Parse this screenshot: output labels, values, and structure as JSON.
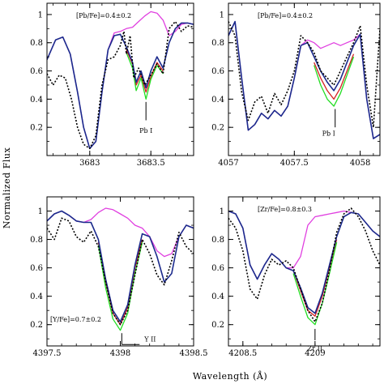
{
  "figure": {
    "xlabel": "Wavelength (Å)",
    "ylabel": "Normalized Flux"
  },
  "colors": {
    "observed": "#000000",
    "blue": "#1b2a8c",
    "magenta": "#e040e0",
    "red": "#d42020",
    "green": "#22dd22"
  },
  "chart_data": [
    {
      "type": "line",
      "panel": "top-left",
      "annotation": "[Pb/Fe]=0.4±0.2",
      "line_label": "Pb I",
      "line_center": 3683.46,
      "xlim": [
        3682.65,
        3683.85
      ],
      "ylim": [
        0,
        1.08
      ],
      "xticks": [
        3683,
        3683.5
      ],
      "xtick_labels": [
        "3683",
        "3683.5"
      ],
      "yticks": [
        0.2,
        0.4,
        0.6,
        0.8,
        1
      ],
      "ytick_labels": [
        "0.2",
        "0.4",
        "0.6",
        "0.8",
        "1"
      ],
      "series": [
        {
          "key": "magenta",
          "x": [
            3682.65,
            3682.72,
            3682.78,
            3682.84,
            3682.9,
            3682.95,
            3683.0,
            3683.05,
            3683.1,
            3683.15,
            3683.2,
            3683.25,
            3683.3,
            3683.35,
            3683.4,
            3683.45,
            3683.5,
            3683.55,
            3683.6,
            3683.65,
            3683.7,
            3683.75,
            3683.8,
            3683.85
          ],
          "y": [
            0.68,
            0.82,
            0.84,
            0.72,
            0.45,
            0.2,
            0.05,
            0.1,
            0.45,
            0.75,
            0.87,
            0.88,
            0.9,
            0.91,
            0.95,
            0.99,
            1.02,
            1.01,
            0.96,
            0.85,
            0.88,
            0.93,
            0.94,
            0.93
          ]
        },
        {
          "key": "red",
          "x": [
            3683.3,
            3683.35,
            3683.38,
            3683.42,
            3683.46,
            3683.5,
            3683.55,
            3683.6
          ],
          "y": [
            0.75,
            0.65,
            0.5,
            0.57,
            0.45,
            0.56,
            0.66,
            0.6
          ]
        },
        {
          "key": "green",
          "x": [
            3683.3,
            3683.35,
            3683.38,
            3683.42,
            3683.46,
            3683.5,
            3683.55,
            3683.6
          ],
          "y": [
            0.73,
            0.62,
            0.46,
            0.55,
            0.4,
            0.54,
            0.64,
            0.58
          ]
        },
        {
          "key": "blue",
          "x": [
            3682.65,
            3682.72,
            3682.78,
            3682.84,
            3682.9,
            3682.95,
            3683.0,
            3683.05,
            3683.1,
            3683.15,
            3683.2,
            3683.25,
            3683.3,
            3683.35,
            3683.38,
            3683.42,
            3683.46,
            3683.5,
            3683.55,
            3683.6,
            3683.65,
            3683.7,
            3683.75,
            3683.8,
            3683.85
          ],
          "y": [
            0.68,
            0.82,
            0.84,
            0.72,
            0.45,
            0.2,
            0.05,
            0.1,
            0.45,
            0.75,
            0.85,
            0.86,
            0.77,
            0.66,
            0.52,
            0.6,
            0.48,
            0.6,
            0.7,
            0.62,
            0.8,
            0.9,
            0.94,
            0.94,
            0.93
          ]
        },
        {
          "key": "observed",
          "dashed": true,
          "x": [
            3682.65,
            3682.7,
            3682.75,
            3682.8,
            3682.85,
            3682.9,
            3682.95,
            3683.0,
            3683.05,
            3683.1,
            3683.15,
            3683.2,
            3683.25,
            3683.28,
            3683.3,
            3683.33,
            3683.36,
            3683.4,
            3683.45,
            3683.5,
            3683.55,
            3683.6,
            3683.65,
            3683.7,
            3683.75,
            3683.8,
            3683.85
          ],
          "y": [
            0.58,
            0.5,
            0.57,
            0.55,
            0.4,
            0.2,
            0.08,
            0.05,
            0.14,
            0.5,
            0.68,
            0.7,
            0.78,
            0.88,
            0.72,
            0.85,
            0.55,
            0.62,
            0.5,
            0.57,
            0.65,
            0.58,
            0.9,
            0.95,
            0.88,
            0.92,
            0.91
          ]
        }
      ]
    },
    {
      "type": "line",
      "panel": "top-right",
      "annotation": "[Pb/Fe]=0.4±0.2",
      "line_label": "Pb I",
      "line_center": 4057.81,
      "xlim": [
        4057.0,
        4058.15
      ],
      "ylim": [
        0,
        1.08
      ],
      "xticks": [
        4057,
        4057.5,
        4058
      ],
      "xtick_labels": [
        "4057",
        "4057.5",
        "4058"
      ],
      "yticks": [
        0.2,
        0.4,
        0.6,
        0.8,
        1
      ],
      "ytick_labels": [
        "0.2",
        "0.4",
        "0.6",
        "0.8",
        "1"
      ],
      "series": [
        {
          "key": "magenta",
          "x": [
            4057.0,
            4057.05,
            4057.1,
            4057.15,
            4057.2,
            4057.25,
            4057.3,
            4057.35,
            4057.4,
            4057.45,
            4057.5,
            4057.55,
            4057.6,
            4057.65,
            4057.7,
            4057.75,
            4057.8,
            4057.85,
            4057.9,
            4057.95,
            4058.0,
            4058.05,
            4058.1,
            4058.15
          ],
          "y": [
            0.85,
            0.95,
            0.55,
            0.18,
            0.22,
            0.3,
            0.26,
            0.32,
            0.28,
            0.35,
            0.55,
            0.78,
            0.82,
            0.8,
            0.76,
            0.78,
            0.8,
            0.78,
            0.8,
            0.82,
            0.86,
            0.4,
            0.12,
            0.15
          ]
        },
        {
          "key": "red",
          "x": [
            4057.65,
            4057.7,
            4057.75,
            4057.8,
            4057.85,
            4057.9,
            4057.95
          ],
          "y": [
            0.66,
            0.55,
            0.46,
            0.4,
            0.48,
            0.6,
            0.72
          ]
        },
        {
          "key": "green",
          "x": [
            4057.65,
            4057.7,
            4057.75,
            4057.8,
            4057.85,
            4057.9,
            4057.95
          ],
          "y": [
            0.64,
            0.5,
            0.4,
            0.35,
            0.44,
            0.57,
            0.7
          ]
        },
        {
          "key": "blue",
          "x": [
            4057.0,
            4057.05,
            4057.1,
            4057.15,
            4057.2,
            4057.25,
            4057.3,
            4057.35,
            4057.4,
            4057.45,
            4057.5,
            4057.55,
            4057.6,
            4057.65,
            4057.7,
            4057.75,
            4057.8,
            4057.85,
            4057.9,
            4057.95,
            4058.0,
            4058.05,
            4058.1,
            4058.15
          ],
          "y": [
            0.85,
            0.95,
            0.55,
            0.18,
            0.22,
            0.3,
            0.26,
            0.32,
            0.28,
            0.35,
            0.55,
            0.78,
            0.8,
            0.7,
            0.6,
            0.52,
            0.46,
            0.54,
            0.66,
            0.78,
            0.86,
            0.4,
            0.12,
            0.15
          ]
        },
        {
          "key": "observed",
          "dashed": true,
          "x": [
            4057.0,
            4057.05,
            4057.1,
            4057.15,
            4057.2,
            4057.25,
            4057.3,
            4057.35,
            4057.4,
            4057.45,
            4057.5,
            4057.55,
            4057.6,
            4057.65,
            4057.7,
            4057.75,
            4057.8,
            4057.85,
            4057.9,
            4057.95,
            4058.0,
            4058.05,
            4058.1,
            4058.15
          ],
          "y": [
            0.95,
            0.85,
            0.45,
            0.25,
            0.38,
            0.42,
            0.3,
            0.44,
            0.36,
            0.46,
            0.6,
            0.85,
            0.8,
            0.73,
            0.6,
            0.55,
            0.5,
            0.6,
            0.7,
            0.8,
            0.92,
            0.5,
            0.2,
            0.9
          ]
        }
      ]
    },
    {
      "type": "line",
      "panel": "bottom-left",
      "annotation": "[Y/Fe]=0.7±0.2",
      "line_label": "Y II",
      "line_center": 4398.01,
      "xlim": [
        4397.5,
        4398.5
      ],
      "ylim": [
        0.05,
        1.1
      ],
      "xticks": [
        4397.5,
        4398,
        4398.5
      ],
      "xtick_labels": [
        "4397.5",
        "4398",
        "4398.5"
      ],
      "yticks": [
        0.2,
        0.4,
        0.6,
        0.8,
        1
      ],
      "ytick_labels": [
        "0.2",
        "0.4",
        "0.6",
        "0.8",
        "1"
      ],
      "series": [
        {
          "key": "magenta",
          "x": [
            4397.5,
            4397.55,
            4397.6,
            4397.65,
            4397.7,
            4397.75,
            4397.8,
            4397.85,
            4397.9,
            4397.95,
            4398.0,
            4398.05,
            4398.1,
            4398.15,
            4398.2,
            4398.25,
            4398.3,
            4398.35,
            4398.4,
            4398.45,
            4398.5
          ],
          "y": [
            0.93,
            0.98,
            1.0,
            0.97,
            0.93,
            0.92,
            0.94,
            0.99,
            1.02,
            1.01,
            0.98,
            0.95,
            0.9,
            0.88,
            0.82,
            0.72,
            0.68,
            0.7,
            0.82,
            0.9,
            0.88
          ]
        },
        {
          "key": "red",
          "x": [
            4397.85,
            4397.9,
            4397.95,
            4398.0,
            4398.05,
            4398.1,
            4398.15
          ],
          "y": [
            0.78,
            0.5,
            0.28,
            0.2,
            0.32,
            0.6,
            0.8
          ]
        },
        {
          "key": "green",
          "x": [
            4397.85,
            4397.9,
            4397.95,
            4398.0,
            4398.05,
            4398.1,
            4398.15
          ],
          "y": [
            0.76,
            0.46,
            0.24,
            0.16,
            0.28,
            0.56,
            0.78
          ]
        },
        {
          "key": "blue",
          "x": [
            4397.5,
            4397.55,
            4397.6,
            4397.65,
            4397.7,
            4397.75,
            4397.8,
            4397.85,
            4397.9,
            4397.95,
            4398.0,
            4398.05,
            4398.1,
            4398.15,
            4398.2,
            4398.25,
            4398.3,
            4398.35,
            4398.4,
            4398.45,
            4398.5
          ],
          "y": [
            0.93,
            0.98,
            1.0,
            0.97,
            0.93,
            0.92,
            0.92,
            0.8,
            0.52,
            0.3,
            0.22,
            0.34,
            0.62,
            0.84,
            0.82,
            0.68,
            0.5,
            0.56,
            0.82,
            0.9,
            0.88
          ]
        },
        {
          "key": "observed",
          "dashed": true,
          "x": [
            4397.5,
            4397.55,
            4397.6,
            4397.65,
            4397.7,
            4397.75,
            4397.8,
            4397.85,
            4397.9,
            4397.95,
            4398.0,
            4398.05,
            4398.1,
            4398.15,
            4398.2,
            4398.25,
            4398.3,
            4398.35,
            4398.4,
            4398.45,
            4398.5
          ],
          "y": [
            0.88,
            0.8,
            0.95,
            0.93,
            0.82,
            0.78,
            0.86,
            0.75,
            0.5,
            0.28,
            0.2,
            0.3,
            0.55,
            0.8,
            0.7,
            0.55,
            0.48,
            0.65,
            0.85,
            0.75,
            0.7
          ]
        }
      ]
    },
    {
      "type": "line",
      "panel": "bottom-right",
      "annotation": "[Zr/Fe]=0.8±0.3",
      "line_label": "Zr II",
      "line_center": 4209.0,
      "xlim": [
        4208.4,
        4209.45
      ],
      "ylim": [
        0.05,
        1.1
      ],
      "xticks": [
        4208.5,
        4209
      ],
      "xtick_labels": [
        "4208.5",
        "4209"
      ],
      "yticks": [
        0.2,
        0.4,
        0.6,
        0.8,
        1
      ],
      "ytick_labels": [
        "0.2",
        "0.4",
        "0.6",
        "0.8",
        "1"
      ],
      "series": [
        {
          "key": "magenta",
          "x": [
            4208.4,
            4208.45,
            4208.5,
            4208.55,
            4208.6,
            4208.65,
            4208.7,
            4208.75,
            4208.8,
            4208.85,
            4208.9,
            4208.95,
            4209.0,
            4209.05,
            4209.1,
            4209.15,
            4209.2,
            4209.25,
            4209.3,
            4209.35,
            4209.4,
            4209.45
          ],
          "y": [
            1.0,
            0.98,
            0.88,
            0.62,
            0.52,
            0.62,
            0.7,
            0.66,
            0.6,
            0.6,
            0.68,
            0.9,
            0.96,
            0.97,
            0.98,
            0.99,
            1.0,
            0.99,
            0.98,
            0.92,
            0.86,
            0.82
          ]
        },
        {
          "key": "red",
          "x": [
            4208.85,
            4208.9,
            4208.95,
            4209.0,
            4209.05,
            4209.1,
            4209.15
          ],
          "y": [
            0.58,
            0.44,
            0.3,
            0.26,
            0.4,
            0.6,
            0.8
          ]
        },
        {
          "key": "green",
          "x": [
            4208.85,
            4208.9,
            4208.95,
            4209.0,
            4209.05,
            4209.1,
            4209.15
          ],
          "y": [
            0.56,
            0.4,
            0.25,
            0.2,
            0.35,
            0.56,
            0.78
          ]
        },
        {
          "key": "blue",
          "x": [
            4208.4,
            4208.45,
            4208.5,
            4208.55,
            4208.6,
            4208.65,
            4208.7,
            4208.75,
            4208.8,
            4208.85,
            4208.9,
            4208.95,
            4209.0,
            4209.05,
            4209.1,
            4209.15,
            4209.2,
            4209.25,
            4209.3,
            4209.35,
            4209.4,
            4209.45
          ],
          "y": [
            1.0,
            0.98,
            0.88,
            0.62,
            0.52,
            0.62,
            0.7,
            0.66,
            0.6,
            0.58,
            0.46,
            0.32,
            0.28,
            0.42,
            0.62,
            0.82,
            0.96,
            0.99,
            0.98,
            0.92,
            0.86,
            0.82
          ]
        },
        {
          "key": "observed",
          "dashed": true,
          "x": [
            4208.4,
            4208.45,
            4208.5,
            4208.55,
            4208.6,
            4208.65,
            4208.7,
            4208.75,
            4208.8,
            4208.85,
            4208.9,
            4208.95,
            4209.0,
            4209.05,
            4209.1,
            4209.15,
            4209.2,
            4209.25,
            4209.3,
            4209.35,
            4209.4,
            4209.45
          ],
          "y": [
            0.95,
            0.88,
            0.72,
            0.45,
            0.38,
            0.55,
            0.66,
            0.62,
            0.65,
            0.6,
            0.45,
            0.3,
            0.22,
            0.35,
            0.58,
            0.85,
            0.98,
            1.02,
            0.96,
            0.86,
            0.72,
            0.62
          ]
        }
      ]
    }
  ]
}
